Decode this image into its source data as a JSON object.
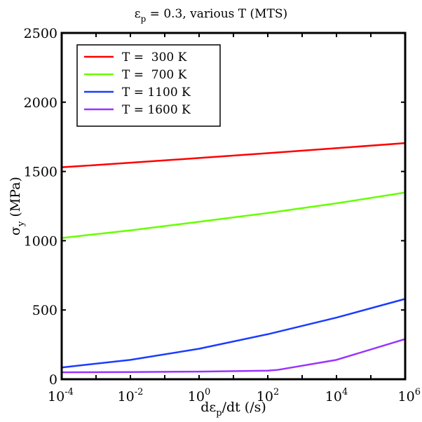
{
  "chart_data": {
    "type": "line",
    "title": {
      "prefix": "ε",
      "sub": "p",
      "suffix": " = 0.3, various T (MTS)"
    },
    "xlabel": {
      "prefix": "dε",
      "sub": "p",
      "suffix": "/dt (/s)"
    },
    "ylabel": {
      "prefix": "σ",
      "sub": "y",
      "suffix": " (MPa)"
    },
    "xscale": "log",
    "xlim": [
      0.0001,
      1000000
    ],
    "ylim": [
      0,
      2500
    ],
    "x_ticks": [
      {
        "base": "10",
        "exp": "-4",
        "value": 0.0001
      },
      {
        "base": "10",
        "exp": "-2",
        "value": 0.01
      },
      {
        "base": "10",
        "exp": "0",
        "value": 1
      },
      {
        "base": "10",
        "exp": "2",
        "value": 100
      },
      {
        "base": "10",
        "exp": "4",
        "value": 10000
      },
      {
        "base": "10",
        "exp": "6",
        "value": 1000000
      }
    ],
    "y_ticks": [
      {
        "label": "0",
        "value": 0
      },
      {
        "label": "500",
        "value": 500
      },
      {
        "label": "1000",
        "value": 1000
      },
      {
        "label": "1500",
        "value": 1500
      },
      {
        "label": "2000",
        "value": 2000
      },
      {
        "label": "2500",
        "value": 2500
      }
    ],
    "legend_position": "top-left",
    "series": [
      {
        "name": "T =  300 K",
        "color": "#ff0000",
        "x": [
          0.0001,
          0.01,
          1,
          100,
          10000,
          1000000
        ],
        "y": [
          1530,
          1563,
          1597,
          1632,
          1668,
          1705
        ]
      },
      {
        "name": "T =  700 K",
        "color": "#66ff00",
        "x": [
          0.0001,
          0.01,
          1,
          100,
          10000,
          1000000
        ],
        "y": [
          1020,
          1075,
          1137,
          1200,
          1270,
          1348
        ]
      },
      {
        "name": "T = 1100 K",
        "color": "#1a3cff",
        "x": [
          0.0001,
          0.01,
          1,
          100,
          10000,
          1000000
        ],
        "y": [
          85,
          140,
          220,
          325,
          445,
          580
        ]
      },
      {
        "name": "T = 1600 K",
        "color": "#9933ff",
        "x": [
          0.0001,
          0.01,
          1,
          100,
          200,
          10000,
          1000000
        ],
        "y": [
          50,
          52,
          55,
          62,
          68,
          140,
          290
        ]
      }
    ]
  }
}
